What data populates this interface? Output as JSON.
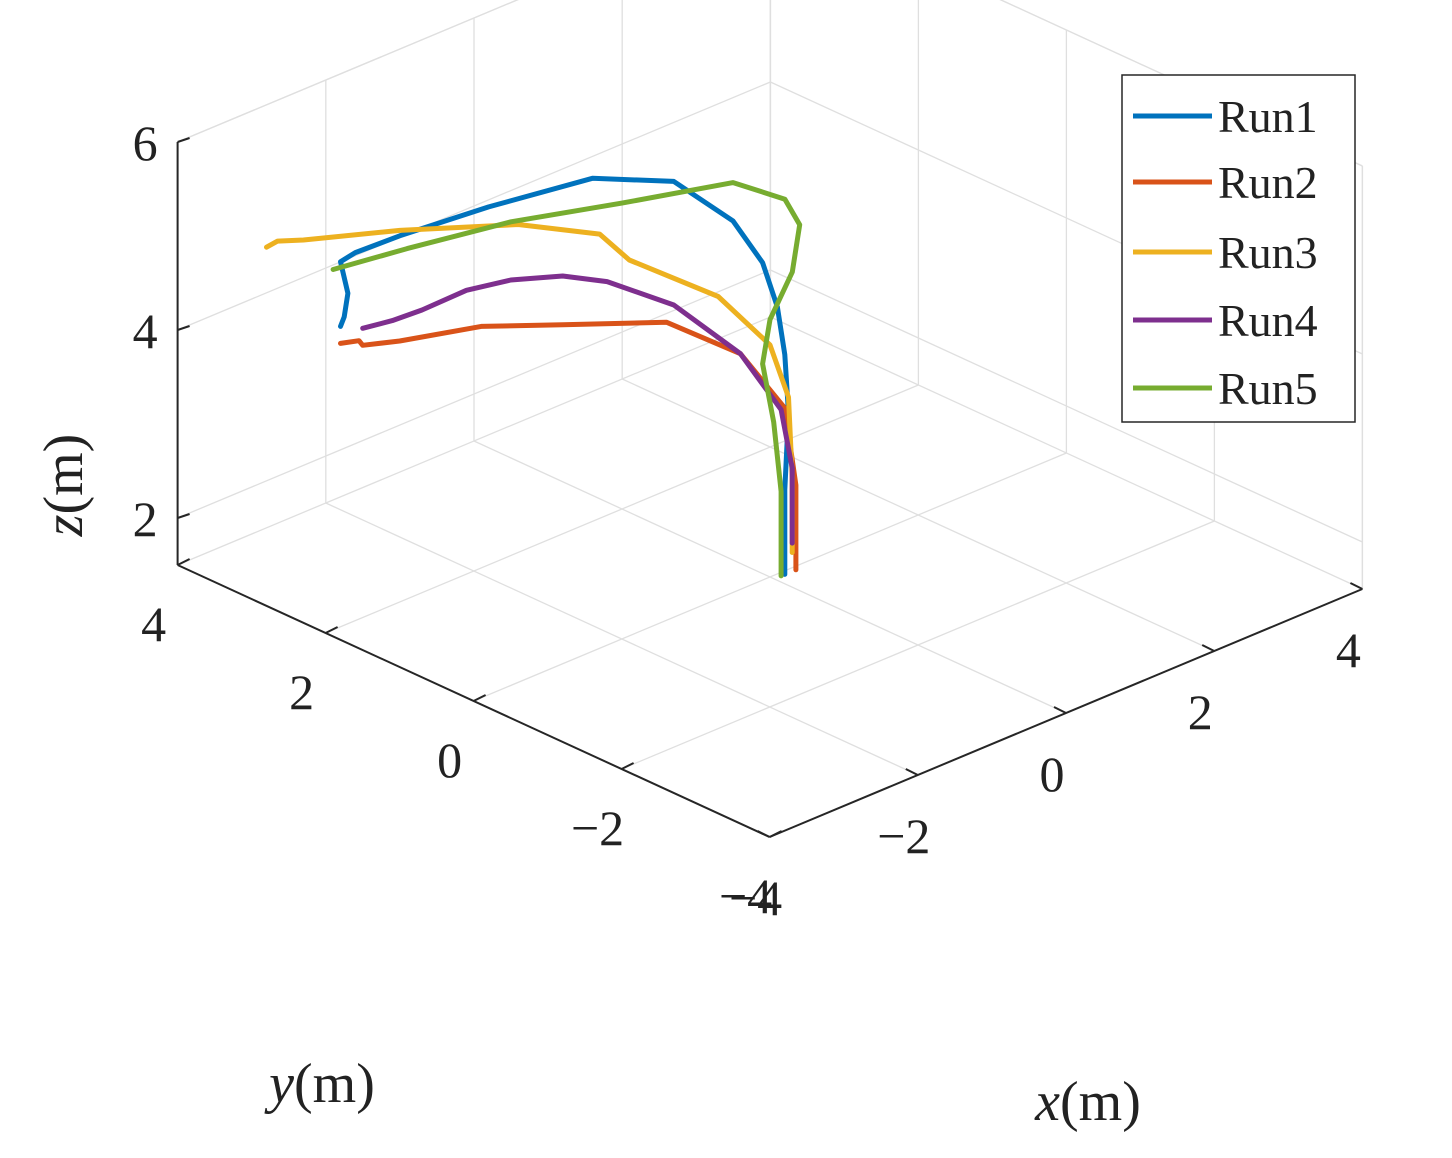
{
  "chart_data": {
    "type": "line",
    "projection": "3d",
    "title": "",
    "xlabel": {
      "var": "x",
      "unit": "(m)"
    },
    "ylabel": {
      "var": "y",
      "unit": "(m)"
    },
    "zlabel": {
      "var": "z",
      "unit": "(m)"
    },
    "xlim": [
      -4,
      4
    ],
    "ylim": [
      -4,
      4
    ],
    "zlim": [
      1.5,
      6
    ],
    "xticks": [
      {
        "value": -4,
        "label": "−4"
      },
      {
        "value": -2,
        "label": "−2"
      },
      {
        "value": 0,
        "label": "0"
      },
      {
        "value": 2,
        "label": "2"
      },
      {
        "value": 4,
        "label": "4"
      }
    ],
    "yticks": [
      {
        "value": -4,
        "label": "−4"
      },
      {
        "value": -2,
        "label": "−2"
      },
      {
        "value": 0,
        "label": "0"
      },
      {
        "value": 2,
        "label": "2"
      },
      {
        "value": 4,
        "label": "4"
      }
    ],
    "zticks": [
      {
        "value": 2,
        "label": "2"
      },
      {
        "value": 4,
        "label": "4"
      },
      {
        "value": 6,
        "label": "6"
      }
    ],
    "grid": true,
    "legend_position": "top-right",
    "series": [
      {
        "name": "Run1",
        "color": "#0072BD",
        "points": [
          [
            0.0,
            -0.2,
            1.6
          ],
          [
            0.0,
            -0.2,
            2.5
          ],
          [
            0.05,
            -0.2,
            3.3
          ],
          [
            0.2,
            0.0,
            3.8
          ],
          [
            0.3,
            0.2,
            4.2
          ],
          [
            0.3,
            0.4,
            4.6
          ],
          [
            0.3,
            0.8,
            4.9
          ],
          [
            0.2,
            1.5,
            5.1
          ],
          [
            -0.4,
            2.0,
            5.15
          ],
          [
            -1.5,
            2.3,
            5.1
          ],
          [
            -2.5,
            2.5,
            5.05
          ],
          [
            -3.0,
            2.6,
            5.0
          ],
          [
            -3.1,
            2.7,
            4.9
          ],
          [
            -3.1,
            2.6,
            4.6
          ],
          [
            -3.2,
            2.55,
            4.4
          ],
          [
            -3.3,
            2.5,
            4.35
          ]
        ]
      },
      {
        "name": "Run2",
        "color": "#D95319",
        "points": [
          [
            0.15,
            -0.2,
            1.6
          ],
          [
            0.15,
            -0.2,
            2.5
          ],
          [
            0.1,
            -0.1,
            3.3
          ],
          [
            -0.1,
            0.3,
            3.8
          ],
          [
            -0.5,
            0.9,
            4.05
          ],
          [
            -1.2,
            1.6,
            4.0
          ],
          [
            -1.8,
            2.1,
            4.0
          ],
          [
            -2.6,
            2.4,
            4.0
          ],
          [
            -3.0,
            2.5,
            4.05
          ],
          [
            -3.1,
            2.45,
            4.15
          ],
          [
            -3.2,
            2.6,
            4.1
          ]
        ]
      },
      {
        "name": "Run3",
        "color": "#EDB120",
        "points": [
          [
            0.1,
            -0.2,
            1.8
          ],
          [
            0.1,
            -0.2,
            2.6
          ],
          [
            0.15,
            -0.1,
            3.4
          ],
          [
            0.1,
            0.1,
            3.9
          ],
          [
            -0.1,
            0.6,
            4.3
          ],
          [
            -0.6,
            1.3,
            4.6
          ],
          [
            -0.7,
            1.6,
            4.8
          ],
          [
            -1.2,
            2.2,
            4.85
          ],
          [
            -2.2,
            2.8,
            4.9
          ],
          [
            -3.1,
            3.2,
            4.95
          ],
          [
            -3.3,
            3.35,
            4.95
          ],
          [
            -3.4,
            3.4,
            4.9
          ]
        ]
      },
      {
        "name": "Run4",
        "color": "#7E2F8E",
        "points": [
          [
            0.1,
            -0.2,
            1.9
          ],
          [
            0.1,
            -0.2,
            2.7
          ],
          [
            0.05,
            -0.1,
            3.3
          ],
          [
            -0.1,
            0.3,
            3.8
          ],
          [
            -0.4,
            0.9,
            4.2
          ],
          [
            -0.8,
            1.4,
            4.4
          ],
          [
            -1.1,
            1.7,
            4.45
          ],
          [
            -1.6,
            1.9,
            4.5
          ],
          [
            -2.0,
            2.1,
            4.45
          ],
          [
            -2.4,
            2.3,
            4.3
          ],
          [
            -2.7,
            2.4,
            4.25
          ],
          [
            -3.1,
            2.4,
            4.3
          ]
        ]
      },
      {
        "name": "Run5",
        "color": "#77AC30",
        "points": [
          [
            -0.05,
            -0.2,
            1.6
          ],
          [
            -0.05,
            -0.2,
            2.5
          ],
          [
            -0.05,
            -0.1,
            3.2
          ],
          [
            -0.1,
            0.0,
            3.8
          ],
          [
            0.2,
            0.2,
            4.1
          ],
          [
            0.8,
            0.5,
            4.3
          ],
          [
            1.0,
            0.6,
            4.7
          ],
          [
            1.0,
            0.8,
            4.9
          ],
          [
            0.6,
            1.1,
            5.1
          ],
          [
            -0.5,
            1.5,
            5.1
          ],
          [
            -1.5,
            2.0,
            5.05
          ],
          [
            -2.5,
            2.4,
            4.95
          ],
          [
            -3.2,
            2.7,
            4.85
          ]
        ]
      }
    ]
  }
}
